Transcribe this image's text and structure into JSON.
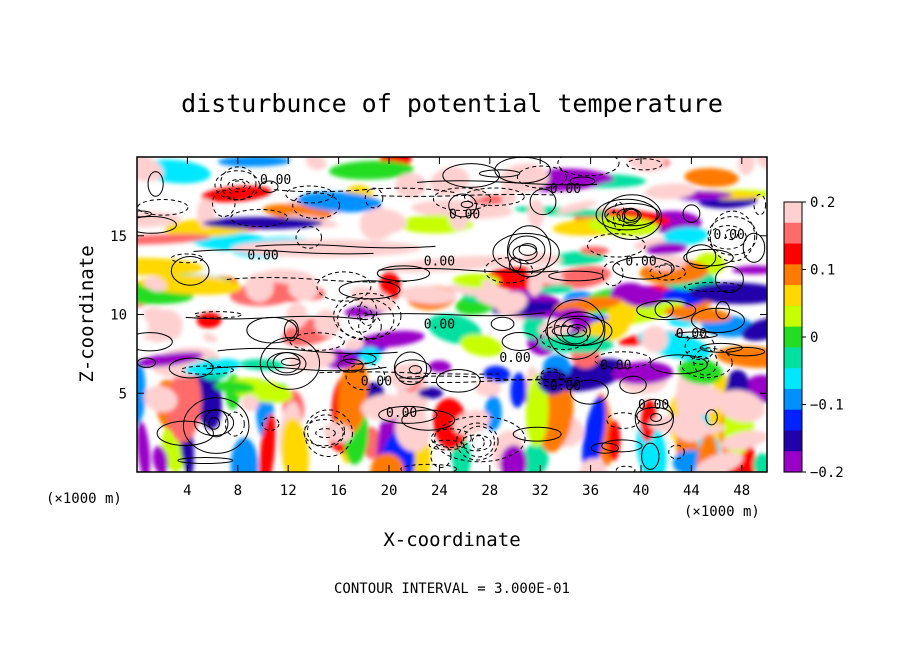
{
  "chart_data": {
    "type": "heatmap",
    "title": "disturbunce of potential temperature",
    "xlabel": "X-coordinate",
    "ylabel": "Z-coordinate",
    "x_unit_label": "(×1000 m)",
    "y_unit_label": "(×1000 m)",
    "xlim": [
      0,
      50
    ],
    "ylim": [
      0,
      20
    ],
    "x_ticks": [
      4,
      8,
      12,
      16,
      20,
      24,
      28,
      32,
      36,
      40,
      44,
      48
    ],
    "y_ticks": [
      5,
      10,
      15
    ],
    "colorbar": {
      "min": -0.2,
      "max": 0.2,
      "ticks": [
        0.2,
        0.1,
        0,
        -0.1,
        -0.2
      ],
      "tick_labels": [
        "0.2",
        "0.1",
        "0",
        "−0.1",
        "−0.2"
      ],
      "colors": [
        "#ffd0d0",
        "#ff6a6a",
        "#ff0000",
        "#ff7a00",
        "#ffd800",
        "#c8ff00",
        "#22dd22",
        "#00e0a0",
        "#00e8ff",
        "#0090ff",
        "#0022ff",
        "#2200aa",
        "#9a00c8"
      ]
    },
    "contour_labels": [
      "0.00",
      "0.00",
      "0.00",
      "0.00",
      "0.00",
      "0.00",
      "0.00",
      "0.00",
      "0.00",
      "0.00",
      "0.00",
      "0.00",
      "0.00",
      "0.00",
      "0.00"
    ],
    "contour_interval_text": "CONTOUR INTERVAL = 3.000E-01"
  }
}
